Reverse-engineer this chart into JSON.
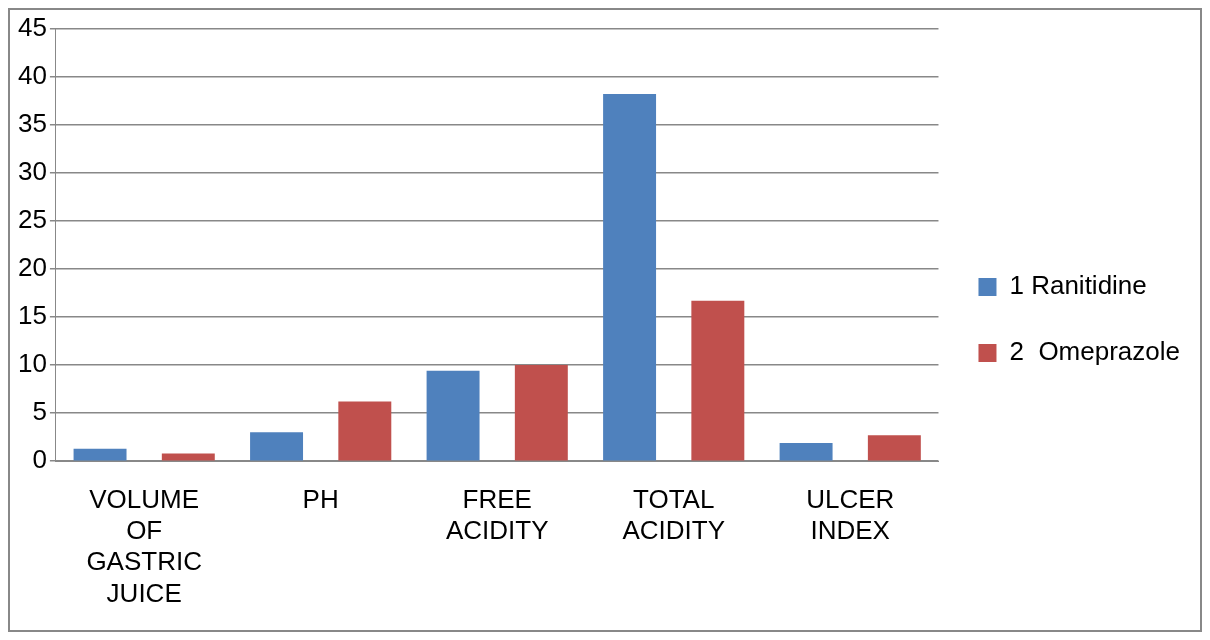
{
  "chart_data": {
    "type": "bar",
    "categories": [
      "VOLUME OF GASTRIC JUICE",
      "PH",
      "FREE ACIDITY",
      "TOTAL ACIDITY",
      "ULCER INDEX"
    ],
    "series": [
      {
        "name": "1 Ranitidine",
        "color": "#4f81bd",
        "values": [
          1.3,
          3.0,
          9.4,
          38.2,
          1.9
        ]
      },
      {
        "name": "2  Omeprazole",
        "color": "#c0504d",
        "values": [
          0.8,
          6.2,
          10,
          16.7,
          2.7
        ]
      }
    ],
    "ylim": [
      0,
      45
    ],
    "yticks": [
      0,
      5,
      10,
      15,
      20,
      25,
      30,
      35,
      40,
      45
    ],
    "grid": "y",
    "legend": "right"
  }
}
